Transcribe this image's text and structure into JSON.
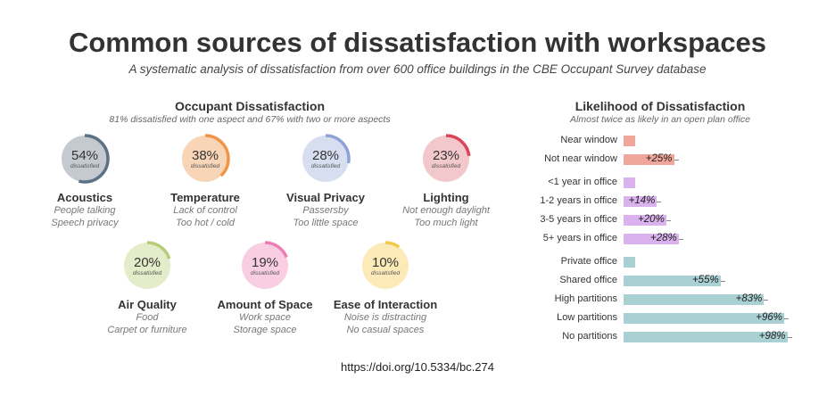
{
  "title": "Common sources of dissatisfaction with workspaces",
  "subtitle": "A systematic analysis of dissatisfaction from over 600 office buildings in the CBE Occupant Survey database",
  "doi": "https://doi.org/10.5334/bc.274",
  "chart_data": [
    {
      "type": "pie",
      "title": "Occupant Dissatisfaction",
      "subtitle": "81% dissatisfied with one aspect and 67% with two or more aspects",
      "value_suffix": "dissatisfied",
      "items": [
        {
          "name": "Acoustics",
          "value": 54,
          "label": "54%",
          "details": [
            "People talking",
            "Speech privacy"
          ],
          "fill": "#c5cad1",
          "arc": "#5d7184"
        },
        {
          "name": "Temperature",
          "value": 38,
          "label": "38%",
          "details": [
            "Lack of control",
            "Too hot / cold"
          ],
          "fill": "#f9d5b8",
          "arc": "#ee9646"
        },
        {
          "name": "Visual Privacy",
          "value": 28,
          "label": "28%",
          "details": [
            "Passersby",
            "Too little space"
          ],
          "fill": "#d7deef",
          "arc": "#8ea3d5"
        },
        {
          "name": "Lighting",
          "value": 23,
          "label": "23%",
          "details": [
            "Not enough daylight",
            "Too much light"
          ],
          "fill": "#f3c8cd",
          "arc": "#d94658"
        },
        {
          "name": "Air Quality",
          "value": 20,
          "label": "20%",
          "details": [
            "Food",
            "Carpet or furniture"
          ],
          "fill": "#e4ecca",
          "arc": "#b6cc78"
        },
        {
          "name": "Amount of Space",
          "value": 19,
          "label": "19%",
          "details": [
            "Work space",
            "Storage space"
          ],
          "fill": "#f9cee3",
          "arc": "#ee7db6"
        },
        {
          "name": "Ease of Interaction",
          "value": 10,
          "label": "10%",
          "details": [
            "Noise is distracting",
            "No casual spaces"
          ],
          "fill": "#fcebb8",
          "arc": "#f2c84a"
        }
      ]
    },
    {
      "type": "bar",
      "orientation": "horizontal",
      "title": "Likelihood of Dissatisfaction",
      "subtitle": "Almost twice as likely in an open plan office",
      "groups": [
        {
          "color": "#f1a69c",
          "bars": [
            {
              "category": "Near window",
              "value": 0,
              "label": ""
            },
            {
              "category": "Not near window",
              "value": 25,
              "label": "+25%"
            }
          ]
        },
        {
          "color": "#d9b2ee",
          "bars": [
            {
              "category": "<1 year in office",
              "value": 0,
              "label": ""
            },
            {
              "category": "1-2 years in office",
              "value": 14,
              "label": "+14%"
            },
            {
              "category": "3-5 years in office",
              "value": 20,
              "label": "+20%"
            },
            {
              "category": "5+ years in office",
              "value": 28,
              "label": "+28%"
            }
          ]
        },
        {
          "color": "#a9d0d2",
          "bars": [
            {
              "category": "Private office",
              "value": 0,
              "label": ""
            },
            {
              "category": "Shared office",
              "value": 55,
              "label": "+55%"
            },
            {
              "category": "High partitions",
              "value": 83,
              "label": "+83%"
            },
            {
              "category": "Low partitions",
              "value": 96,
              "label": "+96%"
            },
            {
              "category": "No partitions",
              "value": 98,
              "label": "+98%"
            }
          ]
        }
      ]
    }
  ]
}
